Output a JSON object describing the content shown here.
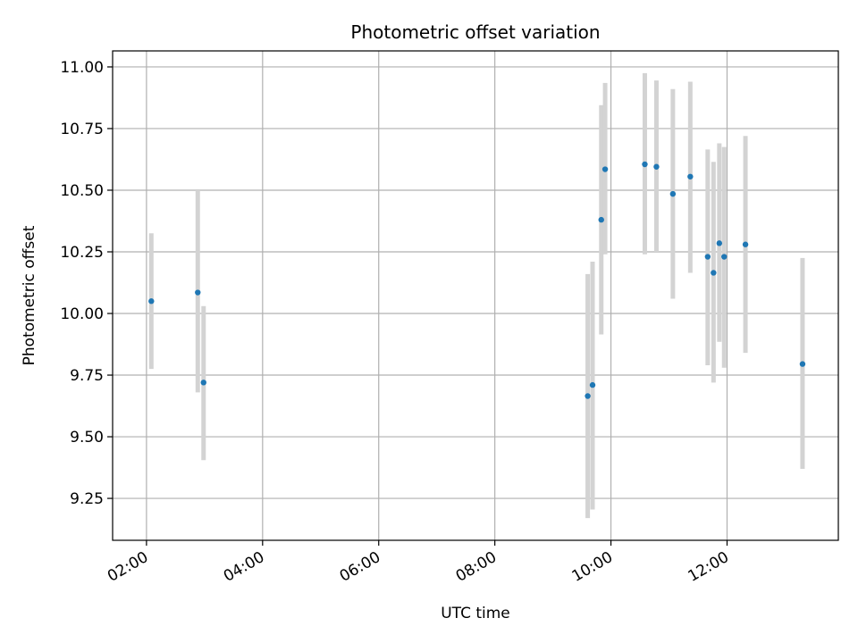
{
  "chart_data": {
    "type": "scatter",
    "title": "Photometric offset variation",
    "xlabel": "UTC time",
    "ylabel": "Photometric offset",
    "xlim": [
      "01:25",
      "13:55"
    ],
    "ylim": [
      9.08,
      11.065
    ],
    "x_ticks": [
      "02:00",
      "04:00",
      "06:00",
      "08:00",
      "10:00",
      "12:00"
    ],
    "y_ticks": [
      "9.25",
      "9.50",
      "9.75",
      "10.00",
      "10.25",
      "10.50",
      "10.75",
      "11.00"
    ],
    "grid": true,
    "colors": {
      "marker": "#1f77b4",
      "errorbar": "#d3d3d3",
      "grid": "#b0b0b0",
      "axes": "#000000"
    },
    "series": [
      {
        "points": [
          {
            "x": "02:05",
            "y": 10.05,
            "ylow": 9.775,
            "yhigh": 10.325
          },
          {
            "x": "02:53",
            "y": 10.085,
            "ylow": 9.68,
            "yhigh": 10.5
          },
          {
            "x": "02:59",
            "y": 9.72,
            "ylow": 9.405,
            "yhigh": 10.03
          },
          {
            "x": "09:36",
            "y": 9.665,
            "ylow": 9.17,
            "yhigh": 10.16
          },
          {
            "x": "09:41",
            "y": 9.71,
            "ylow": 9.205,
            "yhigh": 10.21
          },
          {
            "x": "09:50",
            "y": 10.38,
            "ylow": 9.915,
            "yhigh": 10.845
          },
          {
            "x": "09:54",
            "y": 10.585,
            "ylow": 10.24,
            "yhigh": 10.935
          },
          {
            "x": "10:35",
            "y": 10.605,
            "ylow": 10.24,
            "yhigh": 10.975
          },
          {
            "x": "10:47",
            "y": 10.595,
            "ylow": 10.25,
            "yhigh": 10.945
          },
          {
            "x": "11:04",
            "y": 10.485,
            "ylow": 10.06,
            "yhigh": 10.91
          },
          {
            "x": "11:22",
            "y": 10.555,
            "ylow": 10.165,
            "yhigh": 10.94
          },
          {
            "x": "11:40",
            "y": 10.23,
            "ylow": 9.79,
            "yhigh": 10.665
          },
          {
            "x": "11:46",
            "y": 10.165,
            "ylow": 9.72,
            "yhigh": 10.615
          },
          {
            "x": "11:52",
            "y": 10.285,
            "ylow": 9.885,
            "yhigh": 10.69
          },
          {
            "x": "11:57",
            "y": 10.23,
            "ylow": 9.78,
            "yhigh": 10.675
          },
          {
            "x": "12:19",
            "y": 10.28,
            "ylow": 9.84,
            "yhigh": 10.72
          },
          {
            "x": "13:18",
            "y": 9.795,
            "ylow": 9.37,
            "yhigh": 10.225
          }
        ]
      }
    ]
  }
}
